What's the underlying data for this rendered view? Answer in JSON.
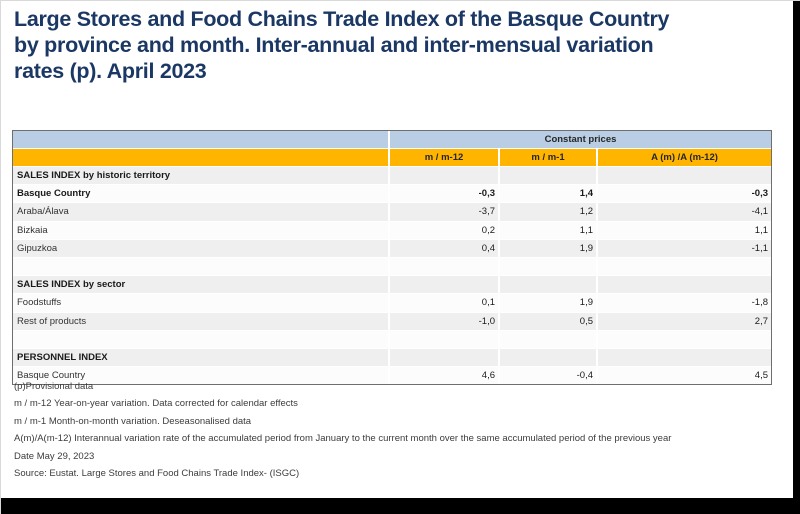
{
  "title_lines": [
    "Large Stores and Food Chains Trade Index of the Basque Country",
    "by province and month. Inter-annual and inter-mensual variation",
    "rates (p). April 2023"
  ],
  "table": {
    "group_header": "Constant prices",
    "columns": [
      "m / m-12",
      "m / m-1",
      "A (m) /A (m-12)"
    ],
    "rows": [
      {
        "label": "SALES INDEX by historic territory",
        "type": "section",
        "values": [
          "",
          "",
          ""
        ]
      },
      {
        "label": "Basque Country",
        "type": "bold",
        "values": [
          "-0,3",
          "1,4",
          "-0,3"
        ]
      },
      {
        "label": "Araba/Álava",
        "type": "data",
        "values": [
          "-3,7",
          "1,2",
          "-4,1"
        ]
      },
      {
        "label": "Bizkaia",
        "type": "data",
        "values": [
          "0,2",
          "1,1",
          "1,1"
        ]
      },
      {
        "label": "Gipuzkoa",
        "type": "data",
        "values": [
          "0,4",
          "1,9",
          "-1,1"
        ]
      },
      {
        "label": "",
        "type": "spacer",
        "values": [
          "",
          "",
          ""
        ]
      },
      {
        "label": "SALES INDEX by sector",
        "type": "section",
        "values": [
          "",
          "",
          ""
        ]
      },
      {
        "label": "Foodstuffs",
        "type": "data",
        "values": [
          "0,1",
          "1,9",
          "-1,8"
        ]
      },
      {
        "label": "Rest of products",
        "type": "data",
        "values": [
          "-1,0",
          "0,5",
          "2,7"
        ]
      },
      {
        "label": "",
        "type": "spacer",
        "values": [
          "",
          "",
          ""
        ]
      },
      {
        "label": "PERSONNEL INDEX",
        "type": "section",
        "values": [
          "",
          "",
          ""
        ]
      },
      {
        "label": "Basque Country",
        "type": "data",
        "values": [
          "4,6",
          "-0,4",
          "4,5"
        ]
      }
    ]
  },
  "notes": [
    "(p)Provisional data",
    "m / m-12 Year-on-year variation. Data corrected for calendar effects",
    "m / m-1 Month-on-month variation. Deseasonalised data",
    "A(m)/A(m-12) Interannual variation rate of the accumulated period from January to the current month over the same accumulated period of the previous year",
    "Date May 29, 2023",
    "Source: Eustat. Large Stores and Food Chains Trade Index- (ISGC)"
  ],
  "colors": {
    "title_color": "#1B3865",
    "header_blue": "#B9CDE4",
    "header_orange": "#FFB400",
    "row_gray": "#EFEFEF",
    "row_white": "#FCFCFC",
    "black_edge": "#000000"
  }
}
